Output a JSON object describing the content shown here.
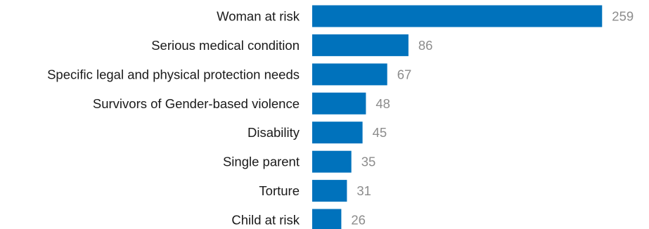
{
  "chart_data": {
    "type": "bar",
    "orientation": "horizontal",
    "categories": [
      "Woman at risk",
      "Serious medical condition",
      "Specific legal and physical protection needs",
      "Survivors of Gender-based violence",
      "Disability",
      "Single parent",
      "Torture",
      "Child at risk"
    ],
    "values": [
      259,
      86,
      67,
      48,
      45,
      35,
      31,
      26
    ],
    "data_labels": [
      "259",
      "86",
      "67",
      "48",
      "45",
      "35",
      "31",
      "26"
    ],
    "grid": false,
    "legend": "none"
  },
  "colors": {
    "bar": "#0072bc",
    "category_text": "#1a1a1a",
    "value_text": "#8c8c8c",
    "background": "#ffffff"
  }
}
